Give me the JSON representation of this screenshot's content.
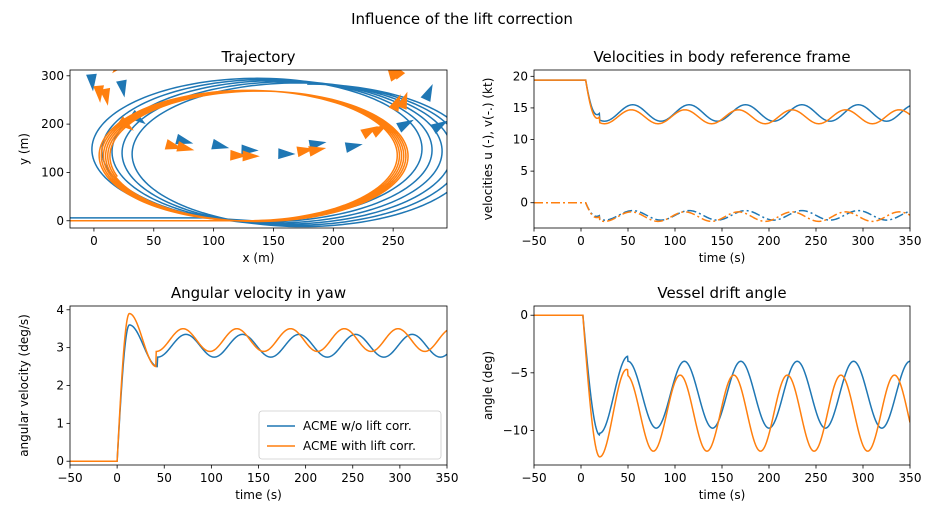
{
  "suptitle": "Influence of the lift correction",
  "colors": {
    "series1": "#1f77b4",
    "series2": "#ff7f0e"
  },
  "chart_data": [
    {
      "type": "line",
      "title": "Trajectory",
      "xlabel": "x (m)",
      "ylabel": "y (m)",
      "xlim": [
        -20,
        295
      ],
      "ylim": [
        -15,
        312
      ],
      "xticks": [
        "0",
        "50",
        "100",
        "150",
        "200",
        "250"
      ],
      "yticks": [
        "0",
        "100",
        "200",
        "300"
      ],
      "series": [
        {
          "color": "#1f77b4",
          "circle": {
            "cx": 132,
            "cy": 142,
            "rx": 140,
            "ry": 148,
            "drift_x": 2.8,
            "drift_y": -0.8,
            "turns": 5.5
          }
        },
        {
          "color": "#ff7f0e",
          "circle": {
            "cx": 128,
            "cy": 135,
            "rx": 125,
            "ry": 135,
            "drift_x": 0.6,
            "drift_y": -0.1,
            "turns": 5.8
          }
        }
      ],
      "grid": false
    },
    {
      "type": "line",
      "title": "Velocities in body reference frame",
      "xlabel": "time (s)",
      "ylabel": "velocities u (-), v(-.) (kt)",
      "xlim": [
        -50,
        350
      ],
      "ylim": [
        -4,
        21
      ],
      "xticks": [
        "−50",
        "0",
        "50",
        "100",
        "150",
        "200",
        "250",
        "300",
        "350"
      ],
      "yticks": [
        "0",
        "5",
        "10",
        "15",
        "20"
      ],
      "series": [
        {
          "color": "#1f77b4",
          "style": "solid",
          "initial": 19.4,
          "mean": 14.2,
          "amp": 1.3,
          "period": 60
        },
        {
          "color": "#ff7f0e",
          "style": "solid",
          "initial": 19.4,
          "mean": 13.6,
          "amp": 1.1,
          "period": 57
        },
        {
          "color": "#1f77b4",
          "style": "dashdot",
          "initial": 0.0,
          "mean": -2.0,
          "amp": 0.75,
          "period": 60
        },
        {
          "color": "#ff7f0e",
          "style": "dashdot",
          "initial": 0.0,
          "mean": -2.2,
          "amp": 0.75,
          "period": 57
        }
      ],
      "grid": false
    },
    {
      "type": "line",
      "title": "Angular velocity in yaw",
      "xlabel": "time (s)",
      "ylabel": "angular velocity (deg/s)",
      "xlim": [
        -50,
        350
      ],
      "ylim": [
        -0.1,
        4.1
      ],
      "xticks": [
        "−50",
        "0",
        "50",
        "100",
        "150",
        "200",
        "250",
        "300",
        "350"
      ],
      "yticks": [
        "0",
        "1",
        "2",
        "3",
        "4"
      ],
      "series": [
        {
          "name": "ACME w/o lift corr.",
          "color": "#1f77b4",
          "peak": 3.6,
          "mean": 3.05,
          "amp": 0.3,
          "period": 60
        },
        {
          "name": "ACME with lift corr.",
          "color": "#ff7f0e",
          "peak": 3.9,
          "mean": 3.2,
          "amp": 0.3,
          "period": 57
        }
      ],
      "legend": "lower-right",
      "grid": false
    },
    {
      "type": "line",
      "title": "Vessel drift angle",
      "xlabel": "time (s)",
      "ylabel": "angle (deg)",
      "xlim": [
        -50,
        350
      ],
      "ylim": [
        -13,
        0.8
      ],
      "xticks": [
        "−50",
        "0",
        "50",
        "100",
        "150",
        "200",
        "250",
        "300",
        "350"
      ],
      "yticks": [
        "0",
        "−5",
        "−10"
      ],
      "series": [
        {
          "color": "#1f77b4",
          "min": -10.4,
          "mean": -6.9,
          "amp": 2.9,
          "period": 60
        },
        {
          "color": "#ff7f0e",
          "min": -12.3,
          "mean": -8.5,
          "amp": 3.3,
          "period": 57
        }
      ],
      "grid": false
    }
  ]
}
